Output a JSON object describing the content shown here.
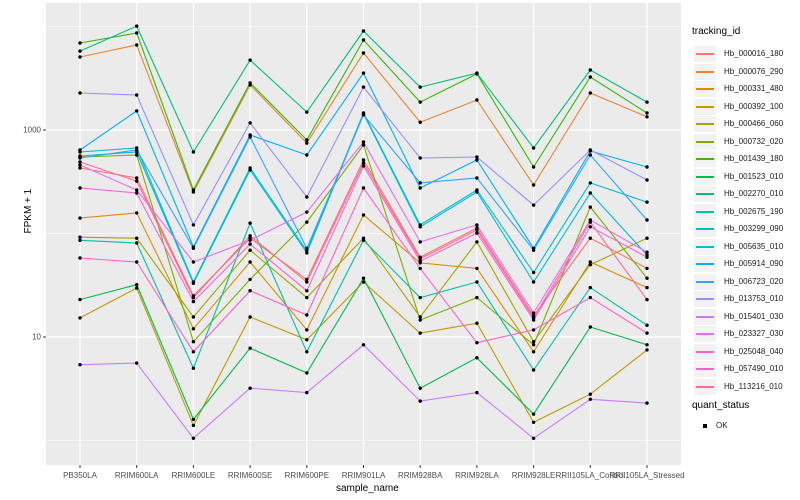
{
  "chart_data": {
    "type": "line",
    "title": "",
    "xlabel": "sample_name",
    "ylabel": "FPKM + 1",
    "yscale": "log10",
    "ylim": [
      1,
      12000
    ],
    "y_breaks": [
      10,
      1000
    ],
    "y_tick_labels": [
      "10",
      "1000"
    ],
    "y_minor_breaks": [
      1,
      100,
      10000
    ],
    "grid": "white-on-grey",
    "panel_bg": "#EBEBEB",
    "legend_position": "right",
    "point_color": "#000000",
    "categories": [
      "PB350LA",
      "RRIM600LA",
      "RRIM600LE",
      "RRIM600SE",
      "RRIM600PE",
      "RRIM901LA",
      "RRIM928BA",
      "RRIM928LA",
      "RRIM928LE",
      "RRII105LA_Control",
      "RRII105LA_Stressed"
    ],
    "series": [
      {
        "name": "Hb_000016_180",
        "color": "#F8766D",
        "values": [
          429,
          344,
          25,
          90,
          36,
          513,
          59,
          113,
          16,
          90,
          46
        ]
      },
      {
        "name": "Hb_000076_290",
        "color": "#EA8331",
        "values": [
          5070,
          6630,
          252,
          2720,
          748,
          5550,
          1190,
          1950,
          294,
          2280,
          1340
        ]
      },
      {
        "name": "Hb_000331_480",
        "color": "#D89000",
        "values": [
          141,
          158,
          12,
          53,
          11.7,
          151,
          52,
          46,
          7.2,
          53,
          30
        ]
      },
      {
        "name": "Hb_000392_100",
        "color": "#C09B00",
        "values": [
          15.3,
          29.7,
          1.4,
          15.6,
          9.4,
          34,
          10.9,
          13.6,
          1.5,
          2.8,
          7.5
        ]
      },
      {
        "name": "Hb_000466_060",
        "color": "#A3A500",
        "values": [
          92,
          90,
          15.6,
          69,
          24,
          90,
          15.6,
          83,
          9,
          50,
          90
        ]
      },
      {
        "name": "Hb_000732_020",
        "color": "#7CAE00",
        "values": [
          548,
          573,
          9,
          36,
          129,
          716,
          14.6,
          24,
          8.4,
          180,
          37
        ]
      },
      {
        "name": "Hb_001439_180",
        "color": "#39B600",
        "values": [
          6930,
          8650,
          263,
          2850,
          800,
          7410,
          1860,
          3480,
          439,
          3250,
          1460
        ]
      },
      {
        "name": "Hb_001523_010",
        "color": "#00BB4E",
        "values": [
          23,
          32,
          1.6,
          7.8,
          4.5,
          37,
          3.2,
          6.3,
          1.8,
          12.5,
          8.4
        ]
      },
      {
        "name": "Hb_002270_010",
        "color": "#00BF7D",
        "values": [
          5790,
          10100,
          613,
          4740,
          1490,
          9050,
          2600,
          3550,
          670,
          3800,
          1860
        ]
      },
      {
        "name": "Hb_002675_190",
        "color": "#00C1A3",
        "values": [
          86,
          81,
          5.0,
          126,
          7.2,
          86,
          24,
          34,
          4.8,
          30,
          13
        ]
      },
      {
        "name": "Hb_003299_090",
        "color": "#00BFC4",
        "values": [
          613,
          670,
          34,
          429,
          68,
          1460,
          121,
          263,
          42,
          308,
          201
        ]
      },
      {
        "name": "Hb_005635_010",
        "color": "#00BAE0",
        "values": [
          561,
          613,
          33,
          411,
          65,
          1430,
          116,
          252,
          34,
          246,
          62
        ]
      },
      {
        "name": "Hb_005914_090",
        "color": "#00B0F6",
        "values": [
          641,
          1530,
          74,
          895,
          573,
          3550,
          275,
          513,
          72,
          627,
          439
        ]
      },
      {
        "name": "Hb_006723_020",
        "color": "#35A2FF",
        "values": [
          536,
          641,
          72,
          856,
          72,
          1400,
          308,
          344,
          69,
          573,
          135
        ]
      },
      {
        "name": "Hb_013753_010",
        "color": "#9590FF",
        "values": [
          2280,
          2180,
          121,
          1170,
          225,
          2600,
          536,
          548,
          188,
          641,
          329
        ]
      },
      {
        "name": "Hb_015401_030",
        "color": "#C77CFF",
        "values": [
          5.4,
          5.6,
          1.05,
          3.2,
          2.9,
          8.4,
          2.4,
          2.9,
          1.05,
          2.5,
          2.3
        ]
      },
      {
        "name": "Hb_023327_030",
        "color": "#E76BF3",
        "values": [
          459,
          263,
          53,
          86,
          161,
          766,
          83,
          121,
          17,
          135,
          66
        ]
      },
      {
        "name": "Hb_025048_040",
        "color": "#FA62DB",
        "values": [
          275,
          246,
          22,
          79,
          28,
          449,
          54,
          101,
          14.6,
          116,
          59
        ]
      },
      {
        "name": "Hb_057490_010",
        "color": "#FF61CC",
        "values": [
          58,
          53,
          7.2,
          28,
          16.3,
          275,
          46,
          8.8,
          11.7,
          24,
          10.9
        ]
      },
      {
        "name": "Hb_113216_010",
        "color": "#FF6A98",
        "values": [
          491,
          321,
          24,
          95,
          34,
          480,
          57,
          108,
          15.3,
          129,
          23
        ]
      }
    ],
    "legend": {
      "tracking_title": "tracking_id",
      "quant_title": "quant_status",
      "quant_items": [
        {
          "label": "OK",
          "glyph": "black-square-point"
        }
      ]
    }
  }
}
